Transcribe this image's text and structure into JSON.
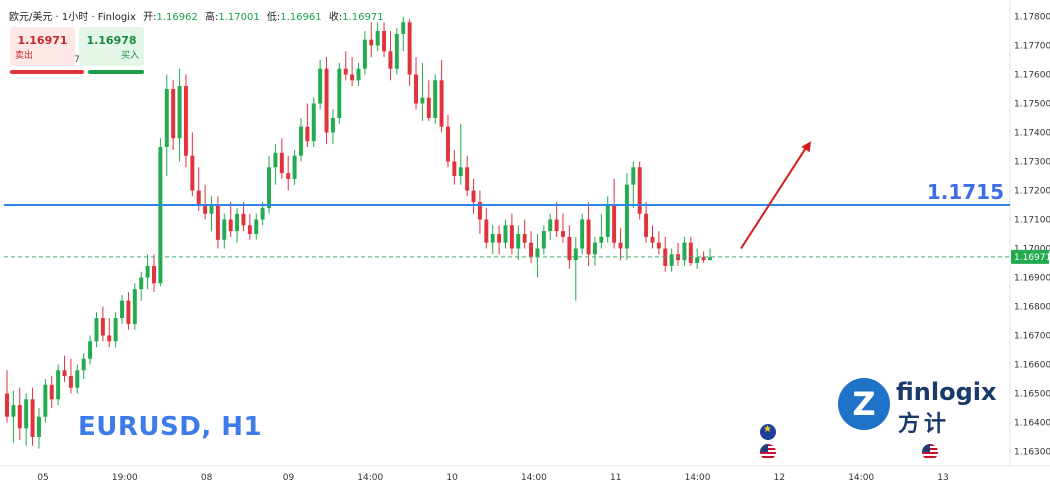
{
  "header": {
    "title": "欧元/美元 · 1小时 · Finlogix",
    "open_label": "开:",
    "open": "1.16962",
    "high_label": "高:",
    "high": "1.17001",
    "low_label": "低:",
    "low": "1.16961",
    "close_label": "收:",
    "close": "1.16971"
  },
  "trade_panel": {
    "sell_price": "1.16971",
    "sell_label": "卖出",
    "buy_price": "1.16978",
    "buy_label": "买入",
    "spread": "7"
  },
  "level_label": "1.1715",
  "pair_label": "EURUSD, H1",
  "logo": {
    "brand": "finlogix",
    "sub": "方计",
    "mark": "Z"
  },
  "flags": [
    "eu-flag",
    "us-flag",
    "us-flag"
  ],
  "colors": {
    "up": "#22ab4f",
    "down": "#e0333c",
    "level_line": "#2f86e0",
    "current_price_line": "#3cb371",
    "arrow": "#d41c1c",
    "price_tag": "#22ab4f"
  },
  "chart_data": {
    "type": "candlestick",
    "symbol": "EURUSD",
    "timeframe": "H1",
    "ylim": [
      1.1625,
      1.1785
    ],
    "y_ticks": [
      "1.16300",
      "1.16400",
      "1.16500",
      "1.16600",
      "1.16700",
      "1.16800",
      "1.16900",
      "1.17000",
      "1.17100",
      "1.17200",
      "1.17300",
      "1.17400",
      "1.17500",
      "1.17600",
      "1.17700",
      "1.17800"
    ],
    "x_ticks": [
      "05",
      "19:00",
      "08",
      "09",
      "14:00",
      "10",
      "14:00",
      "11",
      "14:00",
      "12",
      "14:00",
      "13"
    ],
    "current_price": "1.16971",
    "horizontal_level": 1.1715,
    "projection_arrow": {
      "from": 1.17,
      "to": 1.1737
    },
    "candles": [
      [
        1.165,
        1.1658,
        1.164,
        1.1642
      ],
      [
        1.1642,
        1.1651,
        1.1633,
        1.1646
      ],
      [
        1.1646,
        1.1652,
        1.1634,
        1.1638
      ],
      [
        1.1638,
        1.165,
        1.1632,
        1.1648
      ],
      [
        1.1648,
        1.1652,
        1.1632,
        1.1635
      ],
      [
        1.1635,
        1.1645,
        1.1631,
        1.1642
      ],
      [
        1.1642,
        1.1655,
        1.164,
        1.1653
      ],
      [
        1.1653,
        1.1656,
        1.1645,
        1.1648
      ],
      [
        1.1648,
        1.166,
        1.1646,
        1.1658
      ],
      [
        1.1658,
        1.1663,
        1.1654,
        1.1656
      ],
      [
        1.1656,
        1.1662,
        1.165,
        1.1652
      ],
      [
        1.1652,
        1.166,
        1.165,
        1.1658
      ],
      [
        1.1658,
        1.1664,
        1.1655,
        1.1662
      ],
      [
        1.1662,
        1.167,
        1.166,
        1.1668
      ],
      [
        1.1668,
        1.1678,
        1.1666,
        1.1676
      ],
      [
        1.1676,
        1.168,
        1.1668,
        1.167
      ],
      [
        1.167,
        1.1676,
        1.1666,
        1.1668
      ],
      [
        1.1668,
        1.1678,
        1.1666,
        1.1676
      ],
      [
        1.1676,
        1.1684,
        1.1674,
        1.1682
      ],
      [
        1.1682,
        1.1685,
        1.1672,
        1.1674
      ],
      [
        1.1674,
        1.1688,
        1.1672,
        1.1686
      ],
      [
        1.1686,
        1.1692,
        1.1682,
        1.169
      ],
      [
        1.169,
        1.1698,
        1.1686,
        1.1694
      ],
      [
        1.1694,
        1.1698,
        1.1685,
        1.1688
      ],
      [
        1.1688,
        1.1738,
        1.1687,
        1.1735
      ],
      [
        1.1735,
        1.176,
        1.1725,
        1.1755
      ],
      [
        1.1755,
        1.1758,
        1.1734,
        1.1738
      ],
      [
        1.1738,
        1.1762,
        1.173,
        1.1756
      ],
      [
        1.1756,
        1.176,
        1.1728,
        1.1732
      ],
      [
        1.1732,
        1.174,
        1.1718,
        1.172
      ],
      [
        1.172,
        1.1728,
        1.1713,
        1.1715
      ],
      [
        1.1715,
        1.1722,
        1.171,
        1.1712
      ],
      [
        1.1712,
        1.1718,
        1.1706,
        1.1715
      ],
      [
        1.1715,
        1.1718,
        1.17,
        1.1703
      ],
      [
        1.1703,
        1.1712,
        1.17,
        1.171
      ],
      [
        1.171,
        1.1716,
        1.1704,
        1.1706
      ],
      [
        1.1706,
        1.1714,
        1.1702,
        1.1712
      ],
      [
        1.1712,
        1.1716,
        1.1706,
        1.1708
      ],
      [
        1.1708,
        1.1712,
        1.1703,
        1.1705
      ],
      [
        1.1705,
        1.1712,
        1.1703,
        1.171
      ],
      [
        1.171,
        1.1716,
        1.1708,
        1.1714
      ],
      [
        1.1714,
        1.1732,
        1.1712,
        1.1728
      ],
      [
        1.1728,
        1.1736,
        1.1722,
        1.1733
      ],
      [
        1.1733,
        1.1738,
        1.1724,
        1.1726
      ],
      [
        1.1726,
        1.1732,
        1.172,
        1.1724
      ],
      [
        1.1724,
        1.1734,
        1.1722,
        1.1732
      ],
      [
        1.1732,
        1.1745,
        1.173,
        1.1742
      ],
      [
        1.1742,
        1.175,
        1.1735,
        1.1737
      ],
      [
        1.1737,
        1.1752,
        1.1735,
        1.175
      ],
      [
        1.175,
        1.1765,
        1.1748,
        1.1762
      ],
      [
        1.1762,
        1.1766,
        1.1736,
        1.174
      ],
      [
        1.174,
        1.1748,
        1.1736,
        1.1745
      ],
      [
        1.1745,
        1.1764,
        1.1743,
        1.1762
      ],
      [
        1.1762,
        1.1768,
        1.1758,
        1.176
      ],
      [
        1.176,
        1.1766,
        1.1756,
        1.1758
      ],
      [
        1.1758,
        1.1764,
        1.1756,
        1.1762
      ],
      [
        1.1762,
        1.1775,
        1.176,
        1.1772
      ],
      [
        1.1772,
        1.1778,
        1.1766,
        1.177
      ],
      [
        1.177,
        1.1778,
        1.1768,
        1.1775
      ],
      [
        1.1775,
        1.1778,
        1.1766,
        1.1768
      ],
      [
        1.1768,
        1.1775,
        1.1758,
        1.1762
      ],
      [
        1.1762,
        1.1776,
        1.176,
        1.1774
      ],
      [
        1.1774,
        1.178,
        1.1768,
        1.1778
      ],
      [
        1.1778,
        1.1779,
        1.1756,
        1.176
      ],
      [
        1.176,
        1.1766,
        1.1748,
        1.175
      ],
      [
        1.175,
        1.1764,
        1.1744,
        1.1752
      ],
      [
        1.1752,
        1.1758,
        1.1744,
        1.1745
      ],
      [
        1.1745,
        1.176,
        1.1743,
        1.1758
      ],
      [
        1.1758,
        1.1765,
        1.174,
        1.1742
      ],
      [
        1.1742,
        1.1746,
        1.1728,
        1.173
      ],
      [
        1.173,
        1.1734,
        1.1722,
        1.1725
      ],
      [
        1.1725,
        1.1743,
        1.1722,
        1.1728
      ],
      [
        1.1728,
        1.1732,
        1.1718,
        1.172
      ],
      [
        1.172,
        1.1724,
        1.1712,
        1.1716
      ],
      [
        1.1716,
        1.172,
        1.1705,
        1.171
      ],
      [
        1.171,
        1.1714,
        1.17,
        1.1702
      ],
      [
        1.1702,
        1.1708,
        1.1698,
        1.1705
      ],
      [
        1.1705,
        1.1708,
        1.1698,
        1.1702
      ],
      [
        1.1702,
        1.171,
        1.17,
        1.1708
      ],
      [
        1.1708,
        1.1712,
        1.1698,
        1.17
      ],
      [
        1.17,
        1.1708,
        1.1696,
        1.1705
      ],
      [
        1.1705,
        1.171,
        1.17,
        1.1702
      ],
      [
        1.1702,
        1.1706,
        1.1695,
        1.1697
      ],
      [
        1.1697,
        1.1705,
        1.169,
        1.17
      ],
      [
        1.17,
        1.1708,
        1.1698,
        1.1706
      ],
      [
        1.1706,
        1.1712,
        1.1703,
        1.171
      ],
      [
        1.171,
        1.1716,
        1.1704,
        1.1706
      ],
      [
        1.1706,
        1.1712,
        1.1702,
        1.1704
      ],
      [
        1.1704,
        1.1708,
        1.1693,
        1.1696
      ],
      [
        1.1696,
        1.1704,
        1.1682,
        1.17
      ],
      [
        1.17,
        1.1712,
        1.1698,
        1.171
      ],
      [
        1.171,
        1.1716,
        1.1694,
        1.1698
      ],
      [
        1.1698,
        1.1704,
        1.1694,
        1.1702
      ],
      [
        1.1702,
        1.1712,
        1.17,
        1.1704
      ],
      [
        1.1704,
        1.1718,
        1.1702,
        1.1715
      ],
      [
        1.1715,
        1.1724,
        1.17,
        1.1702
      ],
      [
        1.1702,
        1.1707,
        1.1696,
        1.17
      ],
      [
        1.17,
        1.1726,
        1.1696,
        1.1722
      ],
      [
        1.1722,
        1.173,
        1.1714,
        1.1728
      ],
      [
        1.1728,
        1.173,
        1.171,
        1.1712
      ],
      [
        1.1712,
        1.1716,
        1.1702,
        1.1704
      ],
      [
        1.1704,
        1.1708,
        1.17,
        1.1702
      ],
      [
        1.1702,
        1.1706,
        1.1698,
        1.17
      ],
      [
        1.17,
        1.1704,
        1.1692,
        1.1694
      ],
      [
        1.1694,
        1.17,
        1.1692,
        1.1698
      ],
      [
        1.1698,
        1.1702,
        1.1694,
        1.1696
      ],
      [
        1.1696,
        1.1704,
        1.1694,
        1.1702
      ],
      [
        1.1702,
        1.1704,
        1.1694,
        1.1695
      ],
      [
        1.1695,
        1.17,
        1.1693,
        1.1697
      ],
      [
        1.1697,
        1.1699,
        1.1695,
        1.1696
      ],
      [
        1.1696,
        1.17,
        1.1696,
        1.1697
      ]
    ]
  }
}
